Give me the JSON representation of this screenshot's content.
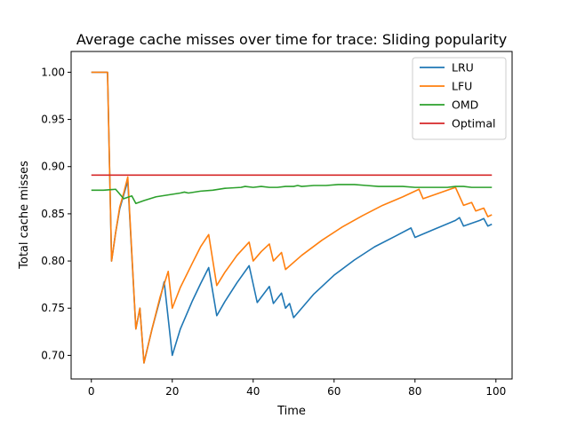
{
  "chart_data": {
    "type": "line",
    "title": "Average cache misses over time for trace: Sliding popularity",
    "xlabel": "Time",
    "ylabel": "Total cache misses",
    "xlim": [
      -5,
      104
    ],
    "ylim": [
      0.675,
      1.022
    ],
    "xticks": [
      0,
      20,
      40,
      60,
      80,
      100
    ],
    "yticks": [
      0.7,
      0.75,
      0.8,
      0.85,
      0.9,
      0.95,
      1.0
    ],
    "grid": false,
    "legend_position": "top-right",
    "series": [
      {
        "name": "LRU",
        "color": "#1f77b4",
        "points": [
          [
            0,
            1.0
          ],
          [
            4,
            1.0
          ],
          [
            5,
            0.8
          ],
          [
            6,
            0.83
          ],
          [
            7,
            0.855
          ],
          [
            8,
            0.87
          ],
          [
            9,
            0.885
          ],
          [
            11,
            0.728
          ],
          [
            12,
            0.75
          ],
          [
            13,
            0.692
          ],
          [
            15,
            0.728
          ],
          [
            17,
            0.76
          ],
          [
            18,
            0.778
          ],
          [
            20,
            0.7
          ],
          [
            22,
            0.728
          ],
          [
            25,
            0.758
          ],
          [
            27,
            0.776
          ],
          [
            29,
            0.793
          ],
          [
            31,
            0.742
          ],
          [
            33,
            0.757
          ],
          [
            36,
            0.777
          ],
          [
            39,
            0.795
          ],
          [
            41,
            0.756
          ],
          [
            44,
            0.773
          ],
          [
            45,
            0.755
          ],
          [
            47,
            0.766
          ],
          [
            48,
            0.75
          ],
          [
            49,
            0.755
          ],
          [
            50,
            0.74
          ],
          [
            55,
            0.765
          ],
          [
            60,
            0.785
          ],
          [
            65,
            0.801
          ],
          [
            70,
            0.815
          ],
          [
            75,
            0.826
          ],
          [
            79,
            0.835
          ],
          [
            80,
            0.825
          ],
          [
            85,
            0.834
          ],
          [
            90,
            0.843
          ],
          [
            91,
            0.846
          ],
          [
            92,
            0.837
          ],
          [
            96,
            0.843
          ],
          [
            97,
            0.845
          ],
          [
            98,
            0.837
          ],
          [
            99,
            0.839
          ]
        ]
      },
      {
        "name": "LFU",
        "color": "#ff7f0e",
        "points": [
          [
            0,
            1.0
          ],
          [
            4,
            1.0
          ],
          [
            5,
            0.8
          ],
          [
            6,
            0.83
          ],
          [
            7,
            0.857
          ],
          [
            8,
            0.872
          ],
          [
            9,
            0.889
          ],
          [
            11,
            0.728
          ],
          [
            12,
            0.75
          ],
          [
            13,
            0.692
          ],
          [
            15,
            0.728
          ],
          [
            17,
            0.762
          ],
          [
            19,
            0.789
          ],
          [
            20,
            0.75
          ],
          [
            22,
            0.772
          ],
          [
            25,
            0.798
          ],
          [
            27,
            0.815
          ],
          [
            29,
            0.828
          ],
          [
            31,
            0.774
          ],
          [
            33,
            0.788
          ],
          [
            36,
            0.806
          ],
          [
            39,
            0.82
          ],
          [
            40,
            0.8
          ],
          [
            42,
            0.81
          ],
          [
            44,
            0.818
          ],
          [
            45,
            0.8
          ],
          [
            47,
            0.809
          ],
          [
            48,
            0.791
          ],
          [
            52,
            0.806
          ],
          [
            57,
            0.822
          ],
          [
            62,
            0.836
          ],
          [
            67,
            0.848
          ],
          [
            72,
            0.859
          ],
          [
            77,
            0.868
          ],
          [
            81,
            0.876
          ],
          [
            82,
            0.866
          ],
          [
            86,
            0.872
          ],
          [
            90,
            0.878
          ],
          [
            92,
            0.859
          ],
          [
            94,
            0.862
          ],
          [
            95,
            0.853
          ],
          [
            97,
            0.856
          ],
          [
            98,
            0.847
          ],
          [
            99,
            0.849
          ]
        ]
      },
      {
        "name": "OMD",
        "color": "#2ca02c",
        "points": [
          [
            0,
            0.875
          ],
          [
            3,
            0.875
          ],
          [
            6,
            0.876
          ],
          [
            8,
            0.866
          ],
          [
            10,
            0.869
          ],
          [
            11,
            0.861
          ],
          [
            13,
            0.864
          ],
          [
            16,
            0.868
          ],
          [
            19,
            0.87
          ],
          [
            22,
            0.872
          ],
          [
            23,
            0.873
          ],
          [
            24,
            0.872
          ],
          [
            27,
            0.874
          ],
          [
            30,
            0.875
          ],
          [
            33,
            0.877
          ],
          [
            37,
            0.878
          ],
          [
            38,
            0.879
          ],
          [
            40,
            0.878
          ],
          [
            42,
            0.879
          ],
          [
            44,
            0.878
          ],
          [
            46,
            0.878
          ],
          [
            48,
            0.879
          ],
          [
            50,
            0.879
          ],
          [
            51,
            0.88
          ],
          [
            52,
            0.879
          ],
          [
            55,
            0.88
          ],
          [
            58,
            0.88
          ],
          [
            61,
            0.881
          ],
          [
            65,
            0.881
          ],
          [
            68,
            0.88
          ],
          [
            71,
            0.879
          ],
          [
            74,
            0.879
          ],
          [
            77,
            0.879
          ],
          [
            80,
            0.878
          ],
          [
            84,
            0.878
          ],
          [
            88,
            0.878
          ],
          [
            90,
            0.879
          ],
          [
            92,
            0.879
          ],
          [
            94,
            0.878
          ],
          [
            97,
            0.878
          ],
          [
            99,
            0.878
          ]
        ]
      },
      {
        "name": "Optimal",
        "color": "#d62728",
        "points": [
          [
            0,
            0.891
          ],
          [
            99,
            0.891
          ]
        ]
      }
    ]
  }
}
